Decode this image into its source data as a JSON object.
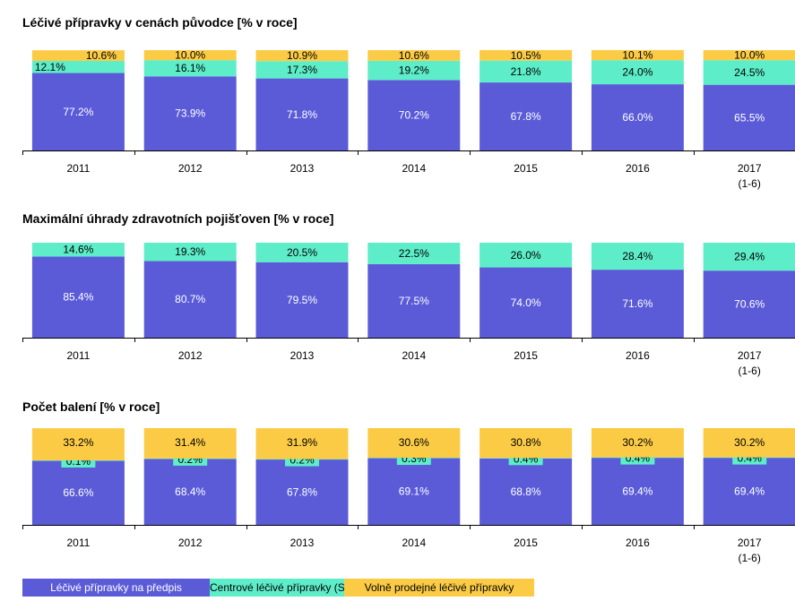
{
  "colors": {
    "predpis": "#5b5bd8",
    "centrove": "#5eedc9",
    "volne": "#fbcb46",
    "axis": "#000000",
    "label_dark": "#000000",
    "label_light": "#ffffff"
  },
  "legend": [
    {
      "label": "Léčivé přípravky na předpis",
      "color": "#5b5bd8"
    },
    {
      "label": "Centrové léčivé přípravky (S)",
      "color": "#5eedc9"
    },
    {
      "label": "Volně prodejné léčivé přípravky",
      "color": "#fbcb46"
    }
  ],
  "chart_data": [
    {
      "type": "bar",
      "stacked": true,
      "title": "Léčivé přípravky v cenách původce [% v roce]",
      "categories": [
        [
          "2011"
        ],
        [
          "2012"
        ],
        [
          "2013"
        ],
        [
          "2014"
        ],
        [
          "2015"
        ],
        [
          "2016"
        ],
        [
          "2017",
          "(1-6)"
        ]
      ],
      "ylim": [
        0,
        100
      ],
      "series": [
        {
          "name": "Léčivé přípravky na předpis",
          "values": [
            77.2,
            73.9,
            71.8,
            70.2,
            67.8,
            66.0,
            65.5
          ],
          "labels": [
            "77.2%",
            "73.9%",
            "71.8%",
            "70.2%",
            "67.8%",
            "66.0%",
            "65.5%"
          ]
        },
        {
          "name": "Centrové léčivé přípravky (S)",
          "values": [
            12.1,
            16.1,
            17.3,
            19.2,
            21.8,
            24.0,
            24.5
          ],
          "labels": [
            "12.1%",
            "16.1%",
            "17.3%",
            "19.2%",
            "21.8%",
            "24.0%",
            "24.5%"
          ]
        },
        {
          "name": "Volně prodejné léčivé přípravky",
          "values": [
            10.6,
            10.0,
            10.9,
            10.6,
            10.5,
            10.1,
            10.0
          ],
          "labels": [
            "10.6%",
            "10.0%",
            "10.9%",
            "10.6%",
            "10.5%",
            "10.1%",
            "10.0%"
          ]
        }
      ]
    },
    {
      "type": "bar",
      "stacked": true,
      "title": "Maximální úhrady zdravotních pojišťoven [% v roce]",
      "categories": [
        [
          "2011"
        ],
        [
          "2012"
        ],
        [
          "2013"
        ],
        [
          "2014"
        ],
        [
          "2015"
        ],
        [
          "2016"
        ],
        [
          "2017",
          "(1-6)"
        ]
      ],
      "ylim": [
        0,
        100
      ],
      "series": [
        {
          "name": "Léčivé přípravky na předpis",
          "values": [
            85.4,
            80.7,
            79.5,
            77.5,
            74.0,
            71.6,
            70.6
          ],
          "labels": [
            "85.4%",
            "80.7%",
            "79.5%",
            "77.5%",
            "74.0%",
            "71.6%",
            "70.6%"
          ]
        },
        {
          "name": "Centrové léčivé přípravky (S)",
          "values": [
            14.6,
            19.3,
            20.5,
            22.5,
            26.0,
            28.4,
            29.4
          ],
          "labels": [
            "14.6%",
            "19.3%",
            "20.5%",
            "22.5%",
            "26.0%",
            "28.4%",
            "29.4%"
          ]
        }
      ]
    },
    {
      "type": "bar",
      "stacked": true,
      "title": "Počet balení [% v roce]",
      "categories": [
        [
          "2011"
        ],
        [
          "2012"
        ],
        [
          "2013"
        ],
        [
          "2014"
        ],
        [
          "2015"
        ],
        [
          "2016"
        ],
        [
          "2017",
          "(1-6)"
        ]
      ],
      "ylim": [
        0,
        100
      ],
      "series": [
        {
          "name": "Léčivé přípravky na předpis",
          "values": [
            66.6,
            68.4,
            67.8,
            69.1,
            68.8,
            69.4,
            69.4
          ],
          "labels": [
            "66.6%",
            "68.4%",
            "67.8%",
            "69.1%",
            "68.8%",
            "69.4%",
            "69.4%"
          ]
        },
        {
          "name": "Centrové léčivé přípravky (S)",
          "values": [
            0.1,
            0.2,
            0.2,
            0.3,
            0.4,
            0.4,
            0.4
          ],
          "labels": [
            "0.1%",
            "0.2%",
            "0.2%",
            "0.3%",
            "0.4%",
            "0.4%",
            "0.4%"
          ]
        },
        {
          "name": "Volně prodejné léčivé přípravky",
          "values": [
            33.2,
            31.4,
            31.9,
            30.6,
            30.8,
            30.2,
            30.2
          ],
          "labels": [
            "33.2%",
            "31.4%",
            "31.9%",
            "30.6%",
            "30.8%",
            "30.2%",
            "30.2%"
          ]
        }
      ]
    }
  ]
}
